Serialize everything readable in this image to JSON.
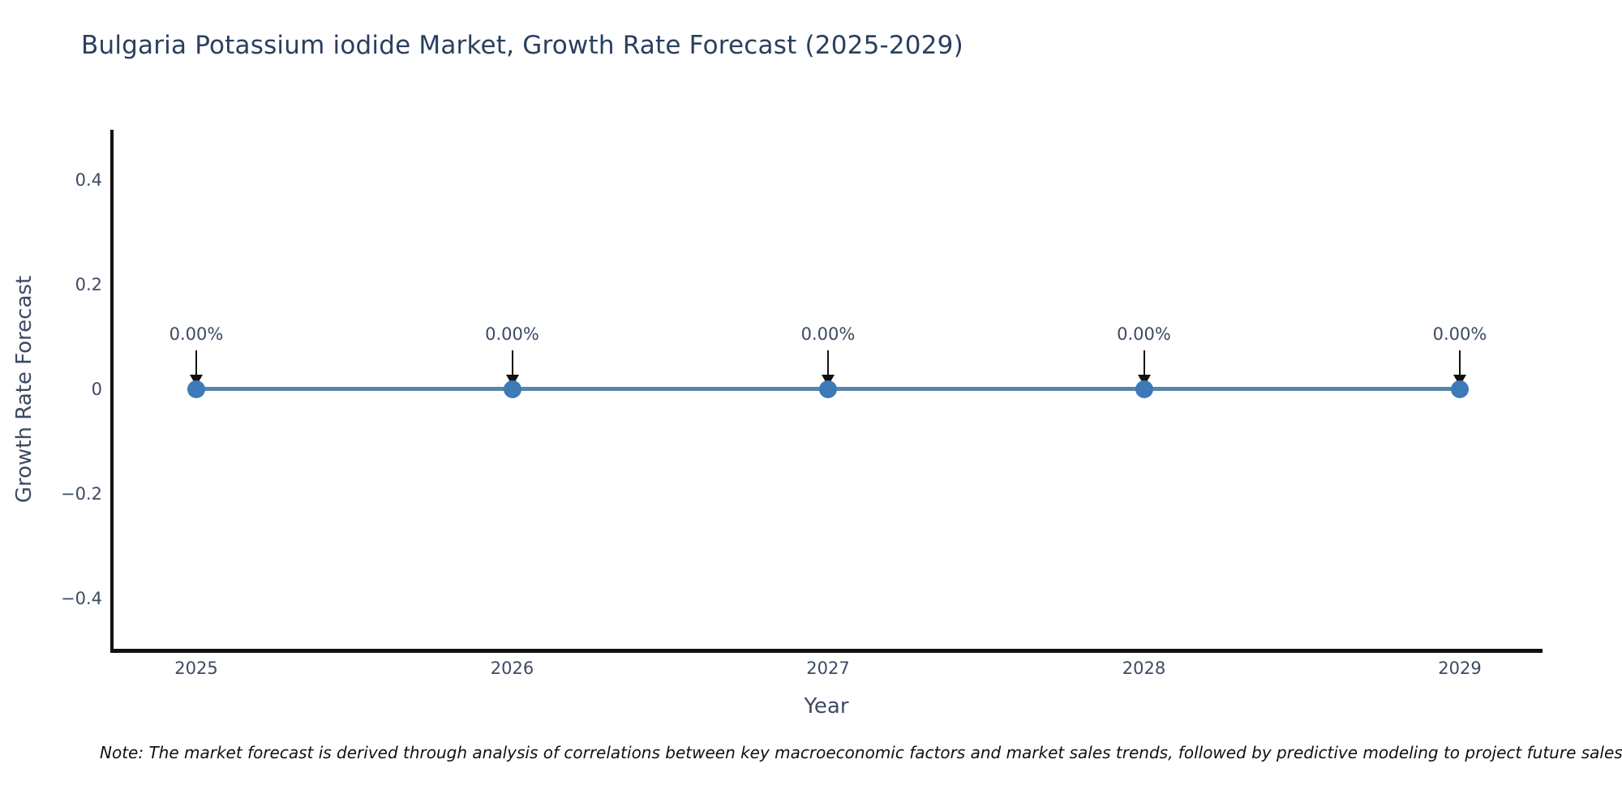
{
  "chart_data": {
    "type": "line",
    "title": "Bulgaria Potassium iodide Market, Growth Rate Forecast (2025-2029)",
    "xlabel": "Year",
    "ylabel": "Growth Rate Forecast",
    "x": [
      2025,
      2026,
      2027,
      2028,
      2029
    ],
    "series": [
      {
        "name": "Growth Rate Forecast",
        "values": [
          0,
          0,
          0,
          0,
          0
        ]
      }
    ],
    "point_labels": [
      "0.00%",
      "0.00%",
      "0.00%",
      "0.00%",
      "0.00%"
    ],
    "xticks": [
      "2025",
      "2026",
      "2027",
      "2028",
      "2029"
    ],
    "yticks": [
      {
        "value": 0.4,
        "label": "0.4"
      },
      {
        "value": 0.2,
        "label": "0.2"
      },
      {
        "value": 0,
        "label": "0"
      },
      {
        "value": -0.2,
        "label": "−0.2"
      },
      {
        "value": -0.4,
        "label": "−0.4"
      }
    ],
    "ylim": [
      -0.5,
      0.5
    ],
    "xlim": [
      2024.73,
      2029.26
    ],
    "grid": false,
    "legend_position": "none",
    "colors": {
      "line": "#5585a8",
      "marker": "#3d7ab8",
      "arrow": "#111111",
      "axis": "#111111",
      "title_text": "#2a3f5f",
      "tick_text": "#3c4a63"
    }
  },
  "note": {
    "text": "Note: The market forecast is derived through analysis of correlations between key macroeconomic factors and market sales trends, followed by predictive modeling to project future sales."
  }
}
